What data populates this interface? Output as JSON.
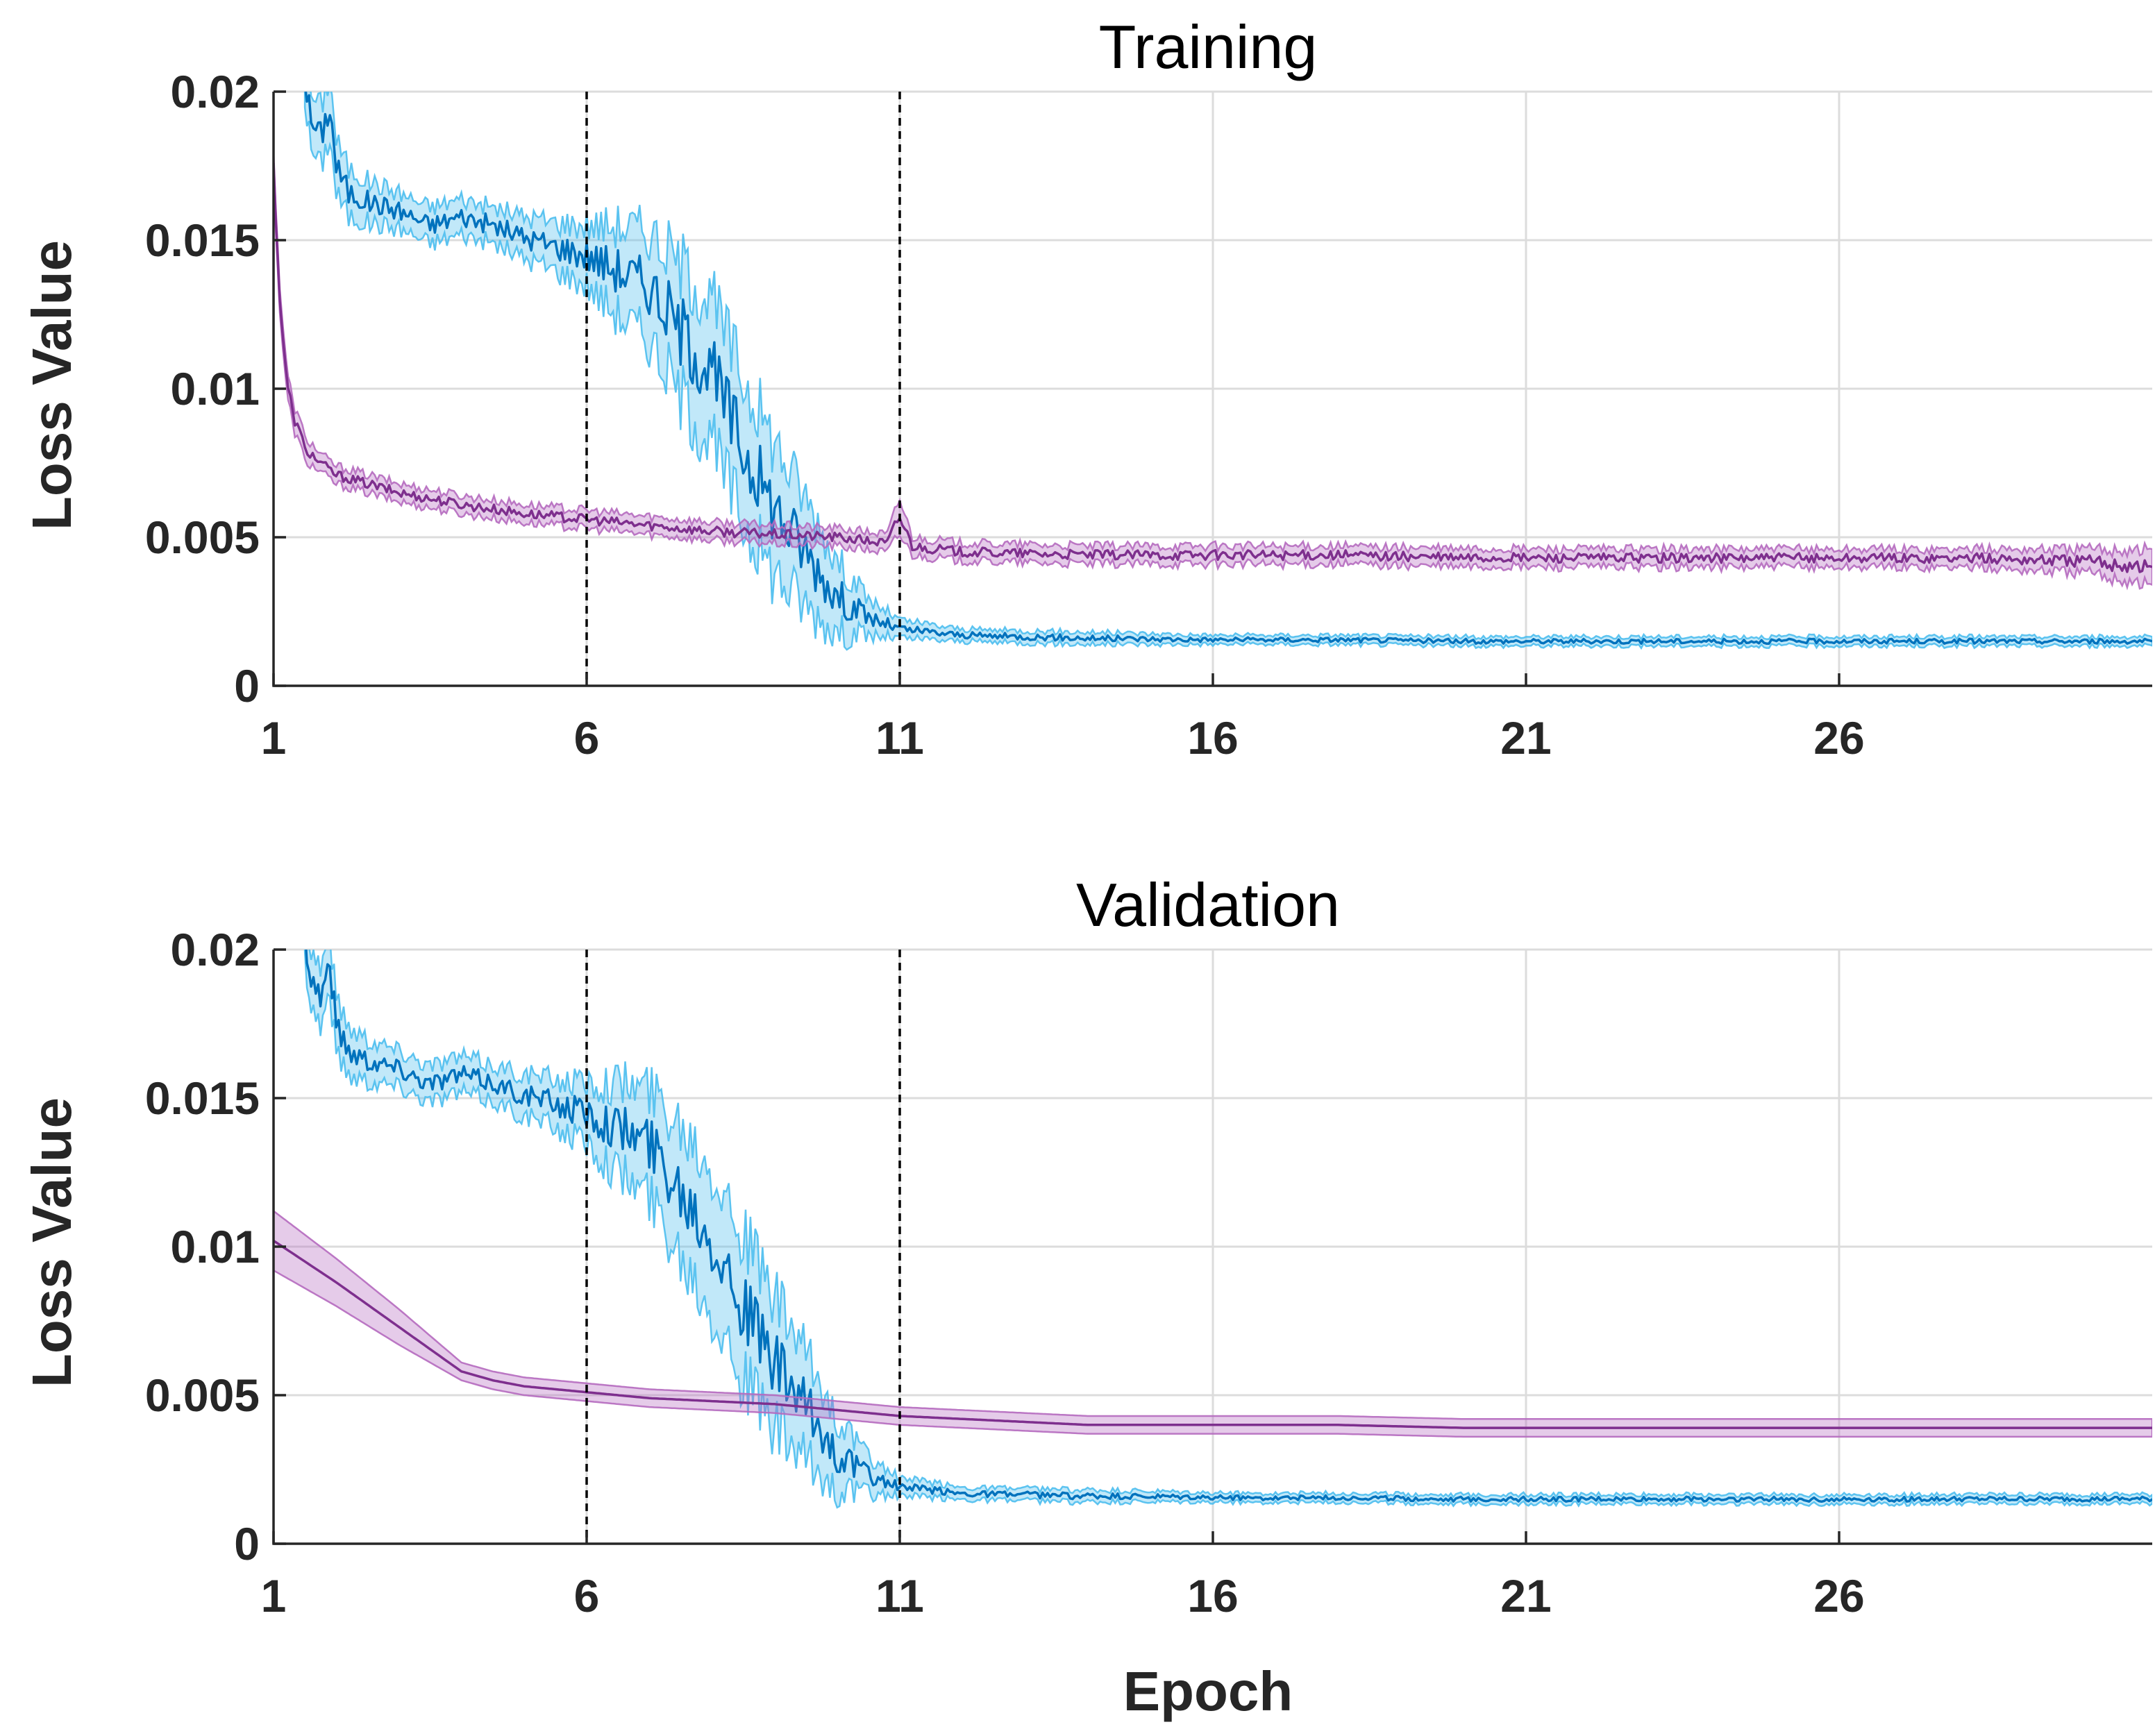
{
  "colors": {
    "blue_line": "#0072BD",
    "blue_band": "#4DBEEE",
    "purple_line": "#7E2F8E",
    "purple_band": "#B56ABF",
    "grid": "#DCDCDC"
  },
  "chart_data": [
    {
      "type": "line",
      "title": "Training",
      "xlabel": "",
      "ylabel": "Loss Value",
      "xlim": [
        1,
        31
      ],
      "ylim": [
        0,
        0.02
      ],
      "xticks": [
        1,
        6,
        11,
        16,
        21,
        26
      ],
      "xtick_labels": [
        "1",
        "6",
        "11",
        "16",
        "21",
        "26"
      ],
      "yticks": [
        0,
        0.005,
        0.01,
        0.015,
        0.02
      ],
      "ytick_labels": [
        "0",
        "0.005",
        "0.01",
        "0.015",
        "0.02"
      ],
      "grid": true,
      "vlines": [
        6,
        11
      ],
      "series": [
        {
          "color_key": "blue",
          "x": [
            1.5,
            1.6,
            1.75,
            1.9,
            2.0,
            2.2,
            2.5,
            3.0,
            3.5,
            4.0,
            4.5,
            5.0,
            5.5,
            6.0,
            6.5,
            7.0,
            7.5,
            8.0,
            8.5,
            9.0,
            9.5,
            10.0,
            10.5,
            11.0,
            12.0,
            14.0,
            16.0,
            18.0,
            20.0,
            22.0,
            24.0,
            26.0,
            28.0,
            30.0,
            31.0
          ],
          "y": [
            0.0205,
            0.019,
            0.0185,
            0.0195,
            0.0175,
            0.0166,
            0.0163,
            0.016,
            0.0155,
            0.0158,
            0.0155,
            0.0151,
            0.0148,
            0.0145,
            0.014,
            0.0135,
            0.012,
            0.0105,
            0.008,
            0.006,
            0.0045,
            0.003,
            0.0023,
            0.0019,
            0.0017,
            0.0016,
            0.00155,
            0.00155,
            0.0015,
            0.0015,
            0.0015,
            0.0015,
            0.0015,
            0.0015,
            0.0015
          ],
          "band": [
            0.0008,
            0.0009,
            0.001,
            0.001,
            0.0009,
            0.0008,
            0.0007,
            0.0006,
            0.0006,
            0.0006,
            0.0006,
            0.0007,
            0.0008,
            0.001,
            0.0015,
            0.0018,
            0.0022,
            0.0024,
            0.0024,
            0.0022,
            0.0018,
            0.0012,
            0.0006,
            0.0003,
            0.0002,
            0.0002,
            0.00015,
            0.00015,
            0.00015,
            0.00015,
            0.00015,
            0.00015,
            0.00015,
            0.00015,
            0.00015
          ]
        },
        {
          "color_key": "purple",
          "x": [
            1.0,
            1.1,
            1.2,
            1.3,
            1.5,
            1.75,
            2.0,
            2.5,
            3.0,
            4.0,
            5.0,
            6.0,
            7.0,
            8.0,
            9.0,
            10.0,
            10.8,
            11.0,
            11.2,
            12.0,
            14.0,
            16.0,
            18.0,
            20.0,
            22.0,
            24.0,
            26.0,
            28.0,
            30.0,
            31.0
          ],
          "y": [
            0.0175,
            0.013,
            0.0105,
            0.0092,
            0.008,
            0.0075,
            0.0071,
            0.0068,
            0.0065,
            0.0061,
            0.0058,
            0.0056,
            0.0054,
            0.0052,
            0.0051,
            0.005,
            0.0048,
            0.0057,
            0.0047,
            0.0045,
            0.0044,
            0.0044,
            0.0044,
            0.0043,
            0.0043,
            0.0043,
            0.0043,
            0.0043,
            0.0042,
            0.004
          ],
          "band": [
            0.0004,
            0.0004,
            0.0004,
            0.0004,
            0.0004,
            0.0003,
            0.0003,
            0.0003,
            0.0003,
            0.0003,
            0.0003,
            0.0003,
            0.0003,
            0.0003,
            0.0003,
            0.0003,
            0.0003,
            0.0006,
            0.0003,
            0.0003,
            0.0003,
            0.0003,
            0.0003,
            0.0003,
            0.0003,
            0.0003,
            0.0003,
            0.0003,
            0.0004,
            0.0006
          ]
        }
      ]
    },
    {
      "type": "line",
      "title": "Validation",
      "xlabel": "Epoch",
      "ylabel": "Loss Value",
      "xlim": [
        1,
        31
      ],
      "ylim": [
        0,
        0.02
      ],
      "xticks": [
        1,
        6,
        11,
        16,
        21,
        26
      ],
      "xtick_labels": [
        "1",
        "6",
        "11",
        "16",
        "21",
        "26"
      ],
      "yticks": [
        0,
        0.005,
        0.01,
        0.015,
        0.02
      ],
      "ytick_labels": [
        "0",
        "0.005",
        "0.01",
        "0.015",
        "0.02"
      ],
      "grid": true,
      "vlines": [
        6,
        11
      ],
      "series": [
        {
          "color_key": "blue",
          "x": [
            1.5,
            1.6,
            1.75,
            1.9,
            2.0,
            2.2,
            2.5,
            3.0,
            3.5,
            4.0,
            4.5,
            5.0,
            5.5,
            6.0,
            6.5,
            7.0,
            7.5,
            8.0,
            8.5,
            9.0,
            9.5,
            10.0,
            10.5,
            11.0,
            12.0,
            14.0,
            16.0,
            18.0,
            20.0,
            22.0,
            24.0,
            26.0,
            28.0,
            30.0,
            31.0
          ],
          "y": [
            0.0205,
            0.019,
            0.0185,
            0.0195,
            0.0175,
            0.0166,
            0.0163,
            0.016,
            0.0155,
            0.0158,
            0.0155,
            0.0151,
            0.0148,
            0.0145,
            0.014,
            0.0135,
            0.012,
            0.0105,
            0.008,
            0.006,
            0.0045,
            0.003,
            0.0023,
            0.0019,
            0.0017,
            0.0016,
            0.00155,
            0.00155,
            0.0015,
            0.0015,
            0.0015,
            0.0015,
            0.0015,
            0.0015,
            0.0015
          ],
          "band": [
            0.0008,
            0.0009,
            0.001,
            0.001,
            0.0009,
            0.0008,
            0.0007,
            0.0006,
            0.0006,
            0.0006,
            0.0006,
            0.0007,
            0.0008,
            0.001,
            0.0015,
            0.0018,
            0.0022,
            0.0024,
            0.0024,
            0.0022,
            0.0018,
            0.0012,
            0.0006,
            0.0003,
            0.0002,
            0.0002,
            0.00015,
            0.00015,
            0.00015,
            0.00015,
            0.00015,
            0.00015,
            0.00015,
            0.00015,
            0.00015
          ]
        },
        {
          "color_key": "purple",
          "x": [
            1.0,
            2.0,
            3.0,
            4.0,
            4.5,
            5.0,
            6.0,
            7.0,
            8.0,
            9.0,
            10.0,
            11.0,
            12.0,
            13.0,
            14.0,
            16.0,
            18.0,
            20.0,
            22.0,
            24.0,
            26.0,
            28.0,
            30.0,
            31.0
          ],
          "y": [
            0.0102,
            0.0088,
            0.0073,
            0.0058,
            0.0055,
            0.0053,
            0.0051,
            0.0049,
            0.0048,
            0.0047,
            0.0045,
            0.0043,
            0.0042,
            0.0041,
            0.004,
            0.004,
            0.004,
            0.0039,
            0.0039,
            0.0039,
            0.0039,
            0.0039,
            0.0039,
            0.0039
          ],
          "band": [
            0.001,
            0.0008,
            0.0006,
            0.0003,
            0.0003,
            0.0003,
            0.0003,
            0.0003,
            0.0003,
            0.0003,
            0.0003,
            0.0003,
            0.0003,
            0.0003,
            0.0003,
            0.0003,
            0.0003,
            0.0003,
            0.0003,
            0.0003,
            0.0003,
            0.0003,
            0.0003,
            0.0003
          ]
        }
      ]
    }
  ]
}
